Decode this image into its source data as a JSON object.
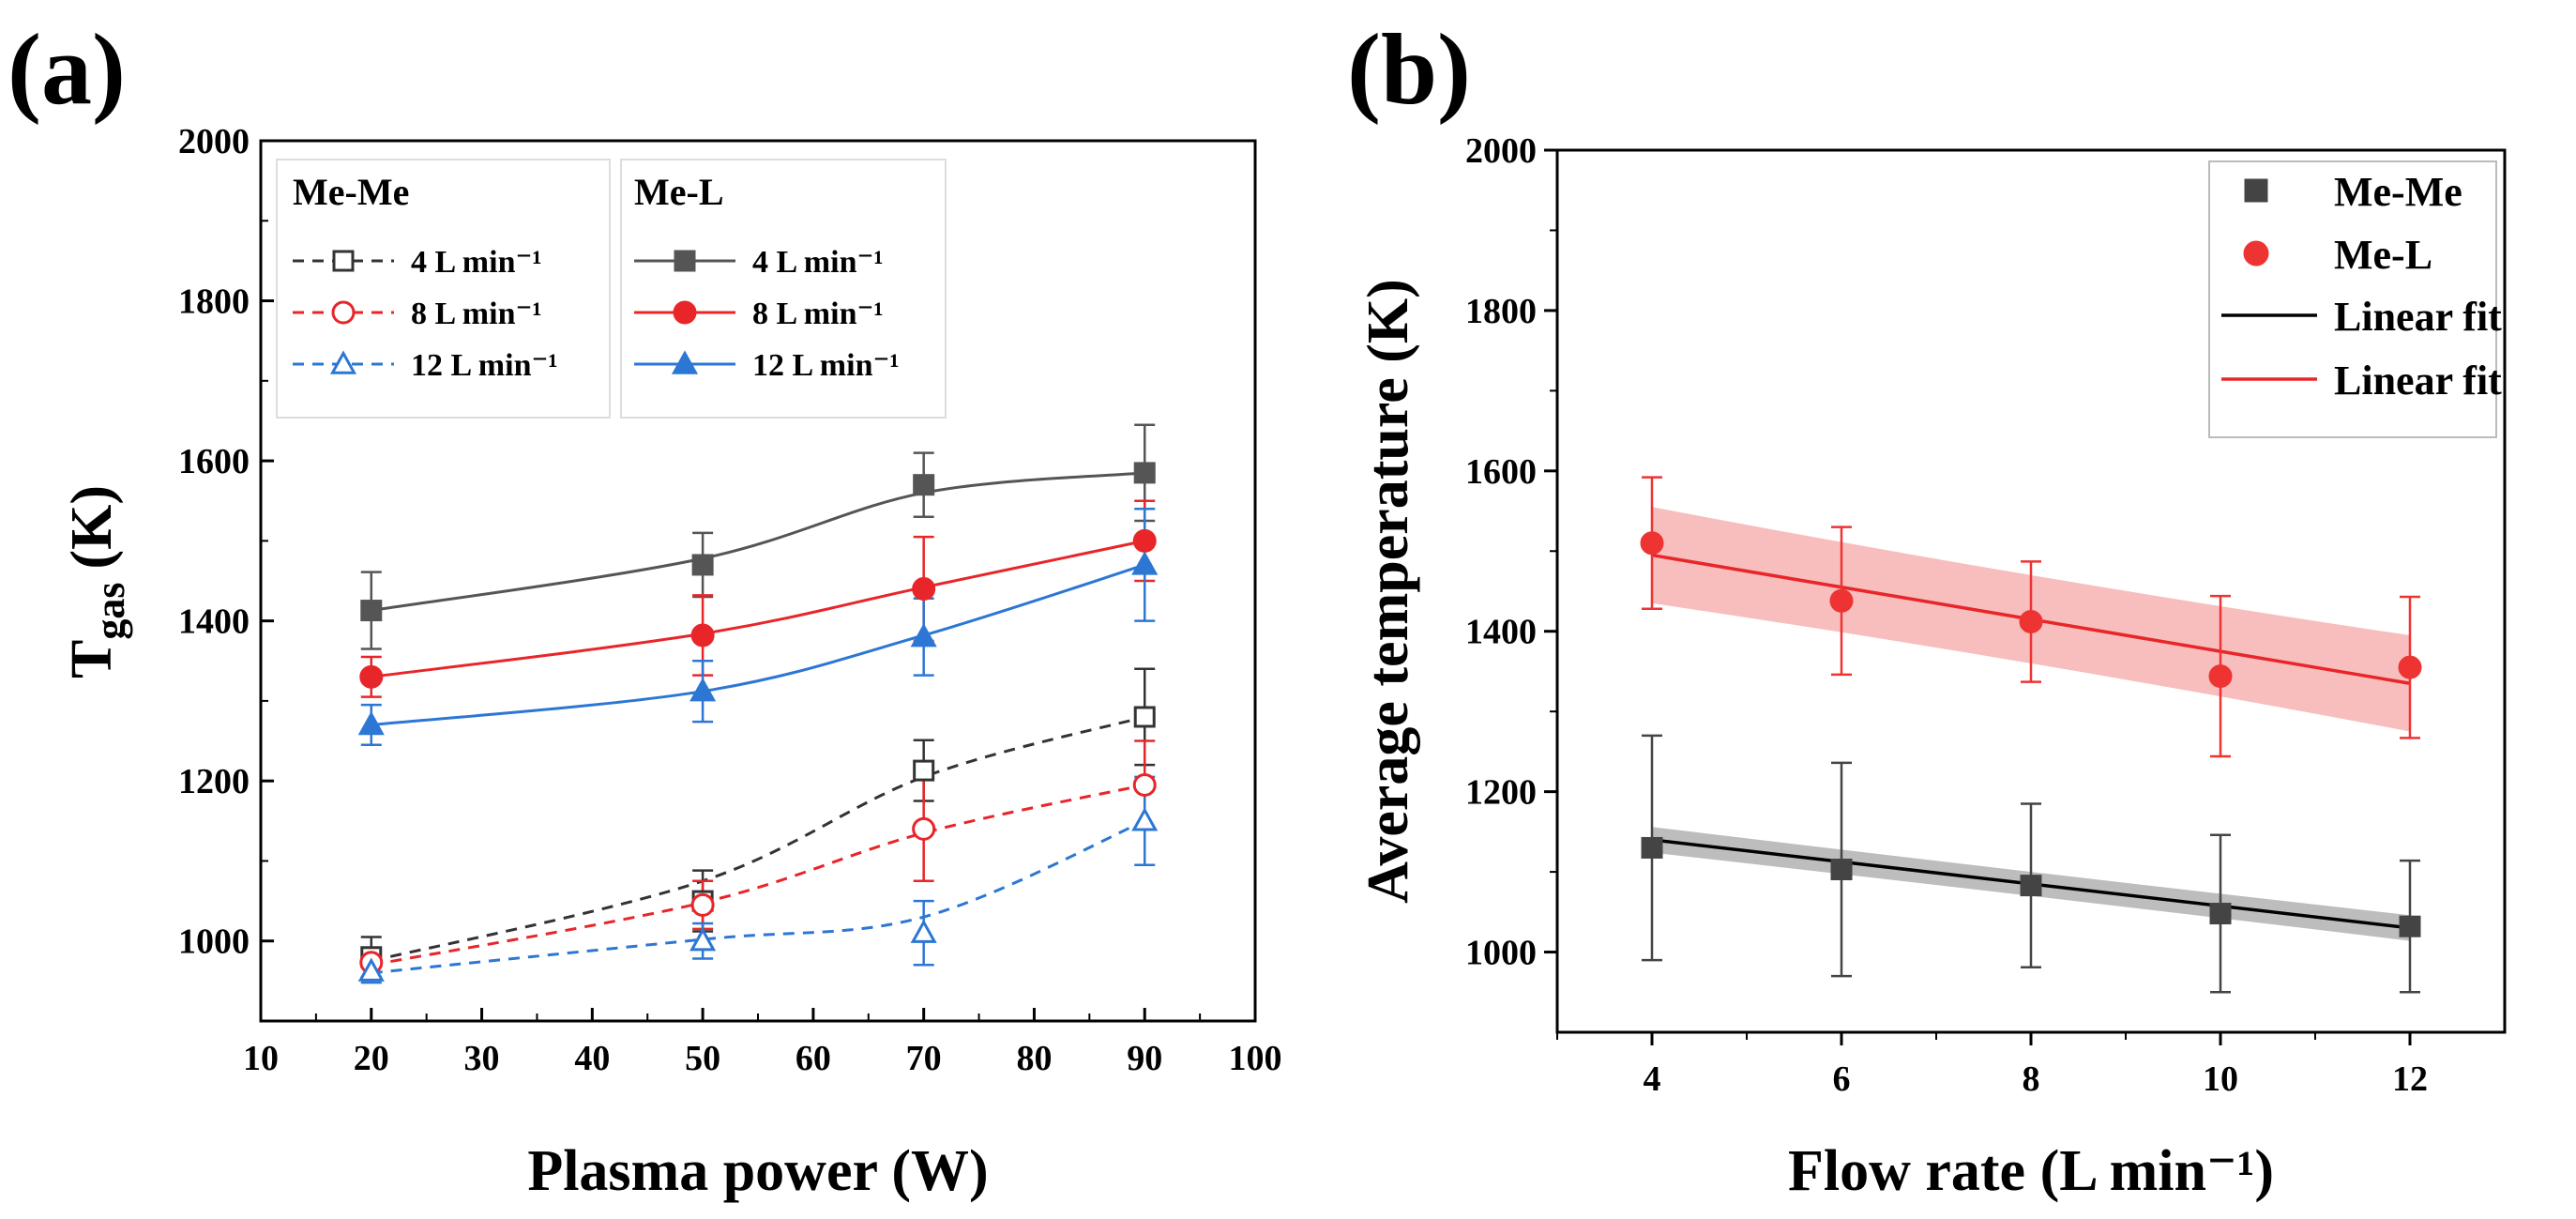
{
  "chart_data": [
    {
      "type": "line",
      "panel_label": "(a)",
      "xlabel": "Plasma power (W)",
      "ylabel_main": "T",
      "ylabel_sub": "gas",
      "ylabel_unit": "(K)",
      "xlim": [
        10,
        100
      ],
      "ylim": [
        900,
        2000
      ],
      "xticks": [
        "10",
        "20",
        "30",
        "40",
        "50",
        "60",
        "70",
        "80",
        "90",
        "100"
      ],
      "yticks": [
        "1000",
        "1200",
        "1400",
        "1600",
        "1800",
        "2000"
      ],
      "x": [
        20,
        50,
        70,
        90
      ],
      "legend_groups": [
        {
          "title": "Me-Me",
          "style": "dashed",
          "fill": "open"
        },
        {
          "title": "Me-L",
          "style": "solid",
          "fill": "filled"
        }
      ],
      "series": [
        {
          "name": "4 L min⁻¹",
          "group": "Me-Me",
          "marker": "square",
          "color": "#333333",
          "values": [
            980,
            1050,
            1213,
            1280
          ],
          "errors": [
            25,
            38,
            38,
            60
          ],
          "curve": [
            975,
            1075,
            1205,
            1280
          ]
        },
        {
          "name": "8 L min⁻¹",
          "group": "Me-Me",
          "marker": "circle",
          "color": "#e8262a",
          "values": [
            973,
            1045,
            1140,
            1195
          ],
          "errors": [
            18,
            30,
            65,
            55
          ],
          "curve": [
            970,
            1048,
            1135,
            1195
          ]
        },
        {
          "name": "12 L min⁻¹",
          "group": "Me-Me",
          "marker": "triangle",
          "color": "#2c77d4",
          "values": [
            962,
            1000,
            1010,
            1150
          ],
          "errors": [
            14,
            22,
            40,
            55
          ],
          "curve": [
            960,
            1002,
            1030,
            1150
          ]
        },
        {
          "name": "4 L min⁻¹",
          "group": "Me-L",
          "marker": "square",
          "color": "#555555",
          "values": [
            1413,
            1470,
            1570,
            1585
          ],
          "errors": [
            48,
            40,
            40,
            60
          ],
          "curve": [
            1413,
            1478,
            1560,
            1585
          ]
        },
        {
          "name": "8 L min⁻¹",
          "group": "Me-L",
          "marker": "circle",
          "color": "#e8262a",
          "values": [
            1330,
            1382,
            1440,
            1500
          ],
          "errors": [
            25,
            50,
            65,
            50
          ],
          "curve": [
            1330,
            1384,
            1442,
            1500
          ]
        },
        {
          "name": "12 L min⁻¹",
          "group": "Me-L",
          "marker": "triangle",
          "color": "#2c77d4",
          "values": [
            1270,
            1312,
            1380,
            1470
          ],
          "errors": [
            25,
            38,
            48,
            70
          ],
          "curve": [
            1270,
            1312,
            1382,
            1470
          ]
        }
      ]
    },
    {
      "type": "scatter",
      "panel_label": "(b)",
      "xlabel": "Flow rate (L min⁻¹)",
      "ylabel": "Average temperature (K)",
      "xlim": [
        3,
        13
      ],
      "ylim": [
        900,
        2000
      ],
      "xticks": [
        "4",
        "6",
        "8",
        "10",
        "12"
      ],
      "yticks": [
        "1000",
        "1200",
        "1400",
        "1600",
        "1800",
        "2000"
      ],
      "x": [
        4,
        6,
        8,
        10,
        12
      ],
      "series": [
        {
          "name": "Me-Me",
          "marker": "square",
          "color": "#444444",
          "values": [
            1130,
            1103,
            1083,
            1048,
            1032
          ],
          "errors": [
            140,
            133,
            102,
            98,
            82
          ]
        },
        {
          "name": "Me-L",
          "marker": "circle",
          "color": "#ee3333",
          "values": [
            1510,
            1438,
            1412,
            1344,
            1355
          ],
          "errors": [
            82,
            92,
            75,
            100,
            88
          ]
        }
      ],
      "fits": [
        {
          "name": "Linear fit",
          "color": "#000000",
          "band_color": "#999999",
          "start": 1140,
          "end": 1030,
          "band": [
            14,
            16
          ]
        },
        {
          "name": "Linear fit",
          "color": "#e8262a",
          "band_color": "#f59a9a",
          "start": 1495,
          "end": 1335,
          "band": [
            50,
            60
          ]
        }
      ]
    }
  ]
}
